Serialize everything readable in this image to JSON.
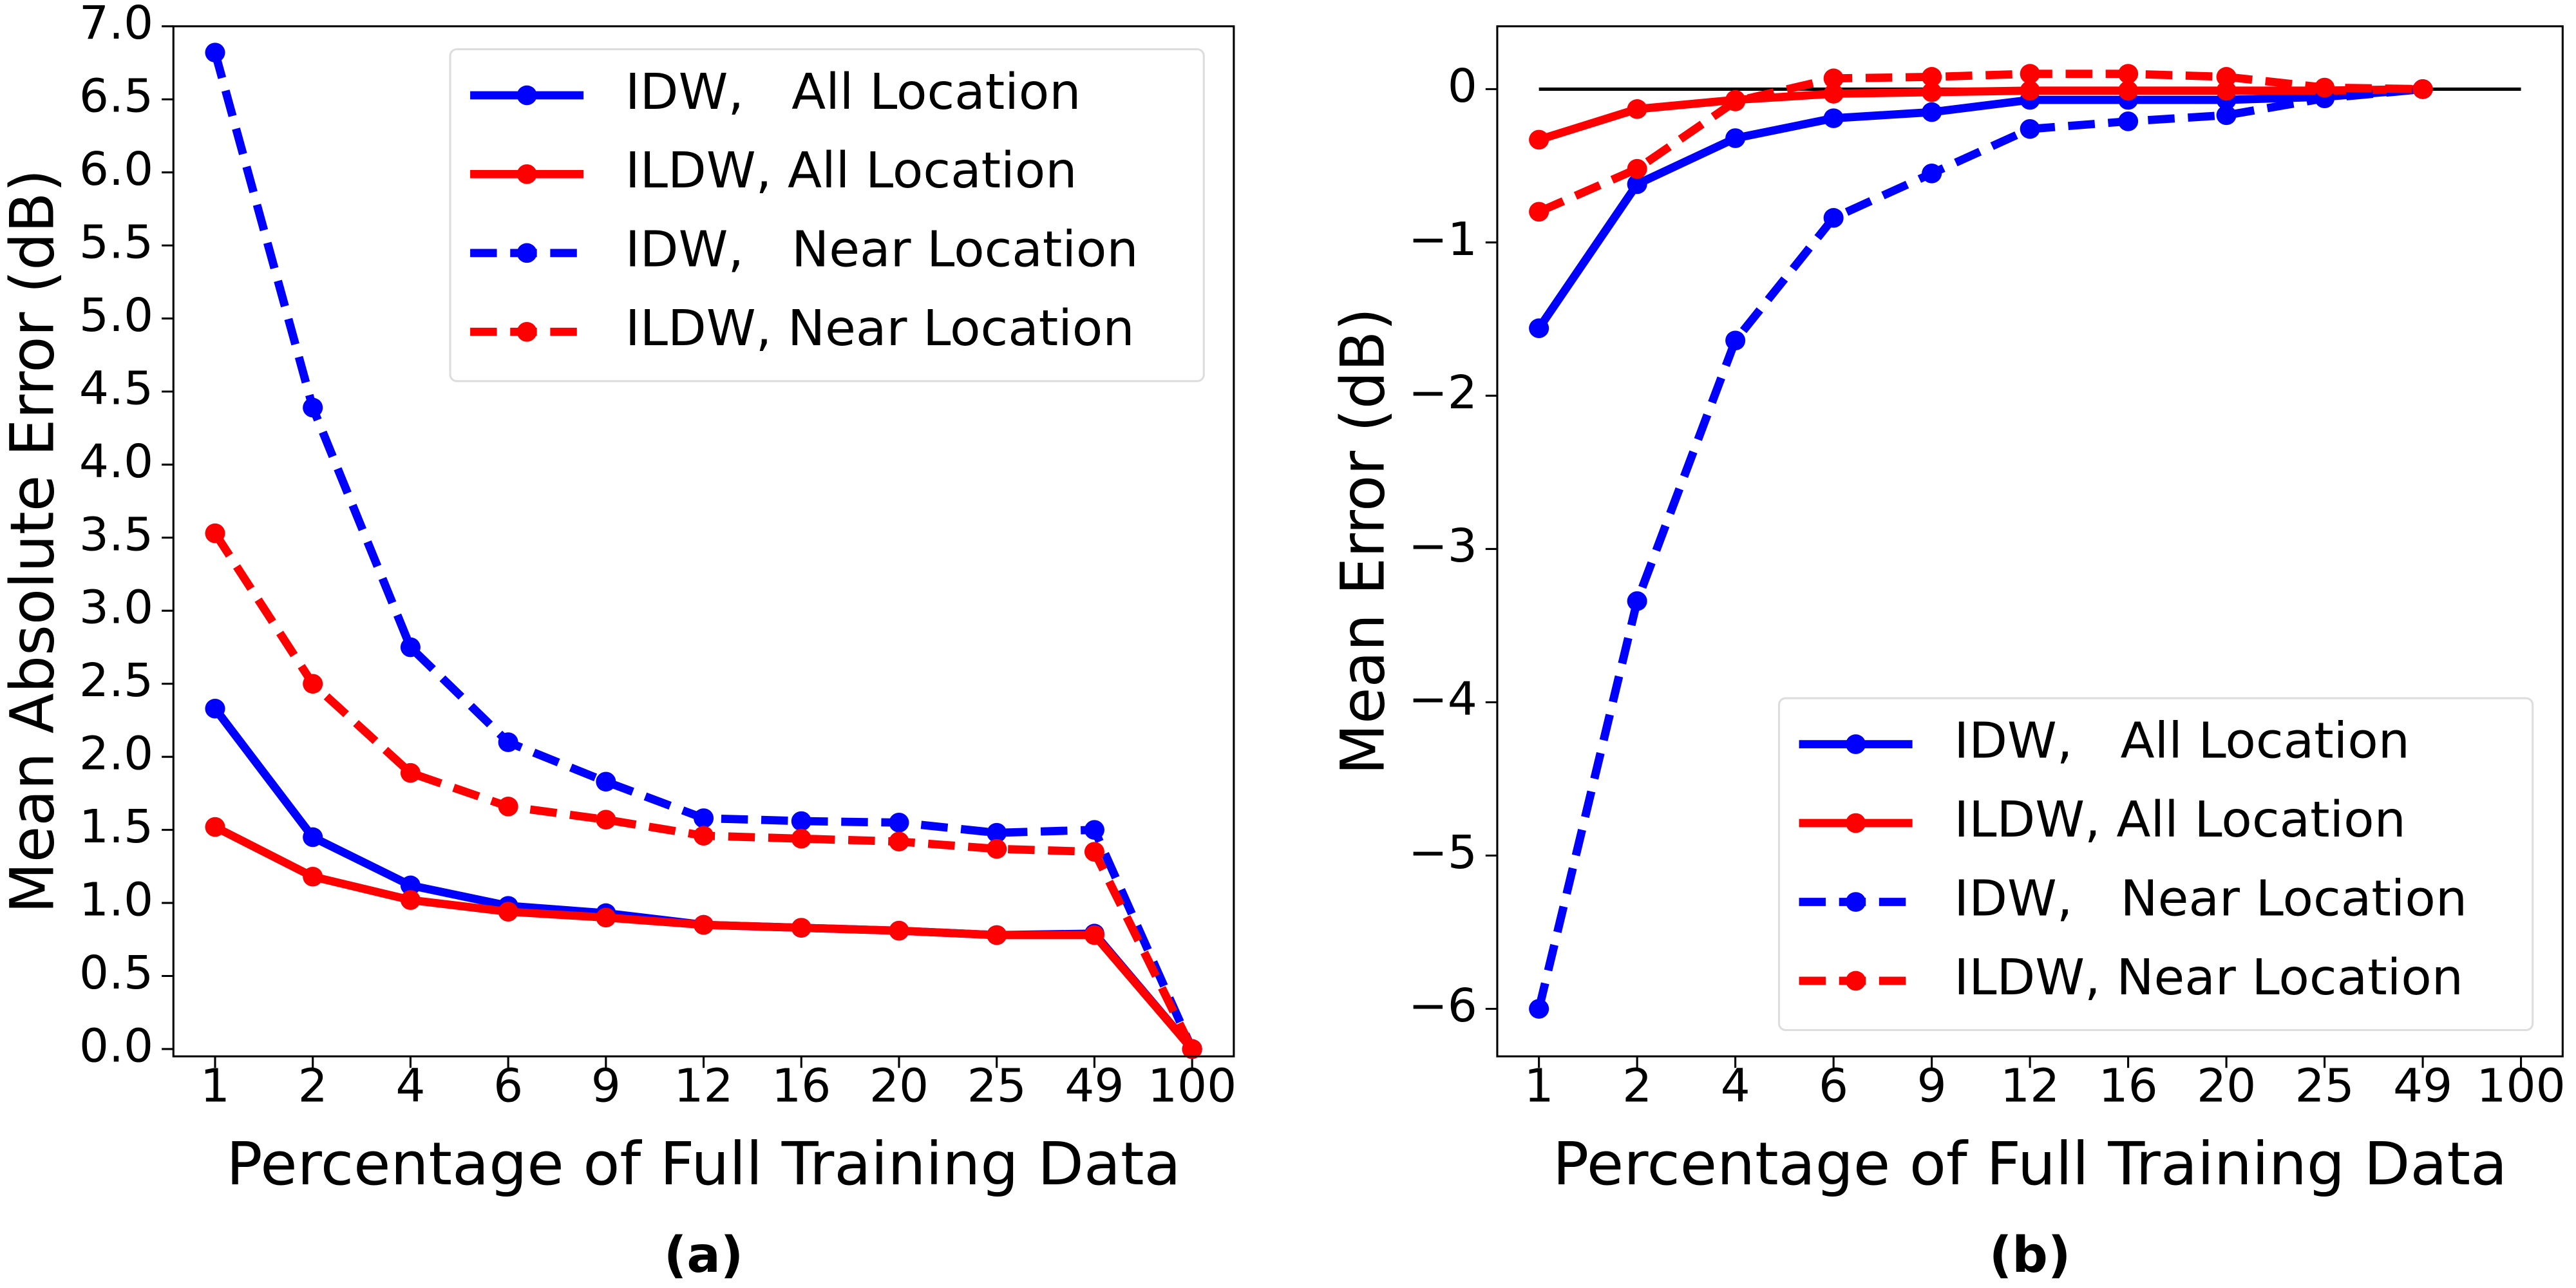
{
  "chart_data": [
    {
      "type": "line",
      "caption": "(a)",
      "x_label": "Percentage of Full Training Data",
      "y_label": "Mean Absolute Error (dB)",
      "categories": [
        "1",
        "2",
        "4",
        "6",
        "9",
        "12",
        "16",
        "20",
        "25",
        "49",
        "100"
      ],
      "series": [
        {
          "name": "IDW,   All Location",
          "color": "#0000ff",
          "linestyle": "solid",
          "values": [
            2.33,
            1.45,
            1.12,
            0.98,
            0.93,
            0.85,
            0.83,
            0.81,
            0.78,
            0.79,
            0.0
          ]
        },
        {
          "name": "ILDW, All Location",
          "color": "#ff0000",
          "linestyle": "solid",
          "values": [
            1.52,
            1.18,
            1.02,
            0.94,
            0.9,
            0.85,
            0.83,
            0.81,
            0.78,
            0.78,
            0.0
          ]
        },
        {
          "name": "IDW,   Near Location",
          "color": "#0000ff",
          "linestyle": "dashed",
          "values": [
            6.82,
            4.39,
            2.75,
            2.1,
            1.83,
            1.58,
            1.56,
            1.55,
            1.48,
            1.5,
            0.0
          ]
        },
        {
          "name": "ILDW, Near Location",
          "color": "#ff0000",
          "linestyle": "dashed",
          "values": [
            3.53,
            2.5,
            1.89,
            1.66,
            1.57,
            1.46,
            1.44,
            1.42,
            1.37,
            1.35,
            0.0
          ]
        }
      ],
      "ylim": [
        -0.05,
        7.0
      ],
      "yticks": [
        {
          "value": 0,
          "label": "0.0"
        },
        0.5,
        {
          "value": 1,
          "label": "1.0"
        },
        1.5,
        {
          "value": 2,
          "label": "2.0"
        },
        2.5,
        {
          "value": 3,
          "label": "3.0"
        },
        3.5,
        {
          "value": 4,
          "label": "4.0"
        },
        4.5,
        {
          "value": 5,
          "label": "5.0"
        },
        5.5,
        {
          "value": 6,
          "label": "6.0"
        },
        6.5,
        {
          "value": 7,
          "label": "7.0"
        }
      ],
      "legend": "upper right"
    },
    {
      "type": "line",
      "caption": "(b)",
      "x_label": "Percentage of Full Training Data",
      "y_label": "Mean Error (dB)",
      "categories": [
        "1",
        "2",
        "4",
        "6",
        "9",
        "12",
        "16",
        "20",
        "25",
        "49",
        "100"
      ],
      "series": [
        {
          "name": "IDW,   All Location",
          "color": "#0000ff",
          "linestyle": "solid",
          "values": [
            -1.56,
            -0.62,
            -0.32,
            -0.19,
            -0.15,
            -0.07,
            -0.07,
            -0.07,
            -0.05,
            0.0,
            null
          ]
        },
        {
          "name": "ILDW, All Location",
          "color": "#ff0000",
          "linestyle": "solid",
          "values": [
            -0.33,
            -0.13,
            -0.07,
            -0.03,
            -0.02,
            -0.01,
            -0.01,
            -0.01,
            -0.01,
            0.0,
            null
          ]
        },
        {
          "name": "IDW,   Near Location",
          "color": "#0000ff",
          "linestyle": "dashed",
          "values": [
            -6.0,
            -3.34,
            -1.64,
            -0.84,
            -0.55,
            -0.26,
            -0.21,
            -0.17,
            -0.06,
            0.0,
            null
          ]
        },
        {
          "name": "ILDW, Near Location",
          "color": "#ff0000",
          "linestyle": "dashed",
          "values": [
            -0.8,
            -0.52,
            -0.08,
            0.07,
            0.08,
            0.1,
            0.1,
            0.08,
            0.01,
            0.0,
            null
          ]
        }
      ],
      "reference_line": 0,
      "ylim": [
        -6.31,
        0.41
      ],
      "yticks": [
        {
          "value": -6,
          "label": "−6"
        },
        {
          "value": -5,
          "label": "−5"
        },
        {
          "value": -4,
          "label": "−4"
        },
        {
          "value": -3,
          "label": "−3"
        },
        {
          "value": -2,
          "label": "−2"
        },
        {
          "value": -1,
          "label": "−1"
        },
        0
      ],
      "legend": "lower right"
    }
  ]
}
